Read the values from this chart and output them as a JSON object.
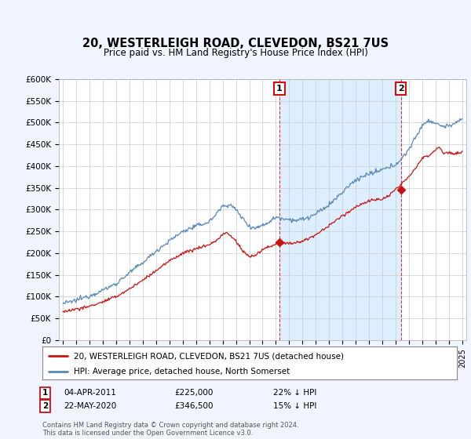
{
  "title": "20, WESTERLEIGH ROAD, CLEVEDON, BS21 7US",
  "subtitle": "Price paid vs. HM Land Registry's House Price Index (HPI)",
  "ylim": [
    0,
    600000
  ],
  "yticks": [
    0,
    50000,
    100000,
    150000,
    200000,
    250000,
    300000,
    350000,
    400000,
    450000,
    500000,
    550000,
    600000
  ],
  "ytick_labels": [
    "£0",
    "£50K",
    "£100K",
    "£150K",
    "£200K",
    "£250K",
    "£300K",
    "£350K",
    "£400K",
    "£450K",
    "£500K",
    "£550K",
    "£600K"
  ],
  "hpi_color": "#5588bb",
  "price_color": "#cc1111",
  "background_color": "#f0f4ff",
  "plot_bg": "#ffffff",
  "shade_color": "#ddeeff",
  "legend_label_price": "20, WESTERLEIGH ROAD, CLEVEDON, BS21 7US (detached house)",
  "legend_label_hpi": "HPI: Average price, detached house, North Somerset",
  "annotation1_date": "04-APR-2011",
  "annotation1_price": "£225,000",
  "annotation1_pct": "22% ↓ HPI",
  "annotation2_date": "22-MAY-2020",
  "annotation2_price": "£346,500",
  "annotation2_pct": "15% ↓ HPI",
  "footer": "Contains HM Land Registry data © Crown copyright and database right 2024.\nThis data is licensed under the Open Government Licence v3.0.",
  "sale1_x": 2011.26,
  "sale1_y": 225000,
  "sale2_x": 2020.38,
  "sale2_y": 346500,
  "xlim_min": 1994.7,
  "xlim_max": 2025.3,
  "hpi_anchors_x": [
    1995,
    1995.5,
    1996,
    1997,
    1998,
    1999,
    2000,
    2001,
    2002,
    2003,
    2004,
    2005,
    2006,
    2007,
    2007.5,
    2008,
    2008.5,
    2009,
    2009.5,
    2010,
    2010.5,
    2011,
    2011.5,
    2012,
    2012.5,
    2013,
    2013.5,
    2014,
    2014.5,
    2015,
    2015.5,
    2016,
    2016.5,
    2017,
    2017.5,
    2018,
    2018.5,
    2019,
    2019.5,
    2020,
    2020.5,
    2021,
    2021.5,
    2022,
    2022.5,
    2023,
    2023.5,
    2024,
    2024.5,
    2025
  ],
  "hpi_anchors_y": [
    85000,
    87000,
    92000,
    102000,
    115000,
    130000,
    155000,
    178000,
    205000,
    228000,
    250000,
    262000,
    272000,
    308000,
    312000,
    300000,
    280000,
    262000,
    258000,
    264000,
    272000,
    283000,
    280000,
    278000,
    275000,
    278000,
    282000,
    290000,
    300000,
    312000,
    325000,
    340000,
    355000,
    368000,
    376000,
    382000,
    385000,
    392000,
    396000,
    405000,
    418000,
    440000,
    465000,
    495000,
    505000,
    498000,
    492000,
    492000,
    500000,
    505000
  ],
  "price_anchors_x": [
    1995,
    1995.5,
    1996,
    1996.5,
    1997,
    1998,
    1999,
    2000,
    2001,
    2002,
    2003,
    2004,
    2005,
    2005.5,
    2006,
    2006.5,
    2007,
    2007.3,
    2007.5,
    2008,
    2008.5,
    2009,
    2009.5,
    2010,
    2010.5,
    2011,
    2011.3,
    2011.5,
    2012,
    2012.5,
    2013,
    2013.5,
    2014,
    2014.5,
    2015,
    2015.5,
    2016,
    2016.5,
    2017,
    2017.5,
    2018,
    2018.5,
    2019,
    2019.5,
    2020,
    2020.5,
    2021,
    2021.5,
    2022,
    2022.5,
    2023,
    2023.3,
    2023.5,
    2024,
    2024.5,
    2025
  ],
  "price_anchors_y": [
    67000,
    68000,
    72000,
    74000,
    78000,
    88000,
    100000,
    118000,
    138000,
    160000,
    182000,
    200000,
    210000,
    215000,
    220000,
    228000,
    243000,
    247000,
    242000,
    228000,
    205000,
    192000,
    196000,
    208000,
    215000,
    220000,
    225000,
    222000,
    222000,
    224000,
    228000,
    234000,
    242000,
    252000,
    264000,
    274000,
    286000,
    296000,
    306000,
    314000,
    320000,
    322000,
    325000,
    332000,
    346500,
    360000,
    378000,
    395000,
    418000,
    425000,
    438000,
    445000,
    432000,
    430000,
    428000,
    432000
  ]
}
